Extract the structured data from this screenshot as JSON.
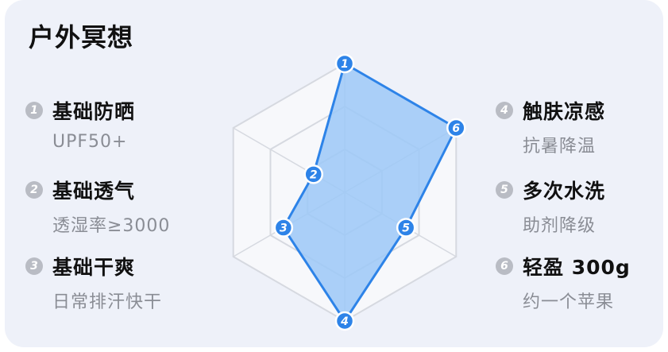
{
  "card": {
    "title": "户外冥想"
  },
  "features": [
    {
      "num": "1",
      "name": "基础防晒",
      "desc": "UPF50+"
    },
    {
      "num": "2",
      "name": "基础透气",
      "desc": "透湿率≥3000"
    },
    {
      "num": "3",
      "name": "基础干爽",
      "desc": "日常排汗快干"
    },
    {
      "num": "4",
      "name": "触肤凉感",
      "desc": "抗暑降温"
    },
    {
      "num": "5",
      "name": "多次水洗",
      "desc": "助剂降级"
    },
    {
      "num": "6",
      "name": "轻盈 300g",
      "desc": "约一个苹果"
    }
  ],
  "chart_data": {
    "type": "radar",
    "axes": [
      "1",
      "6",
      "5",
      "4",
      "3",
      "2"
    ],
    "values": [
      1.0,
      1.0,
      0.55,
      1.0,
      0.55,
      0.28
    ],
    "max": 1,
    "levels": 3,
    "grid": true,
    "colors": {
      "fill": "#9cc8f7",
      "stroke": "#2d83e8",
      "grid": "#d6d9e0",
      "grid_fill": "#f7f8fb",
      "marker": "#2d83e8"
    }
  }
}
